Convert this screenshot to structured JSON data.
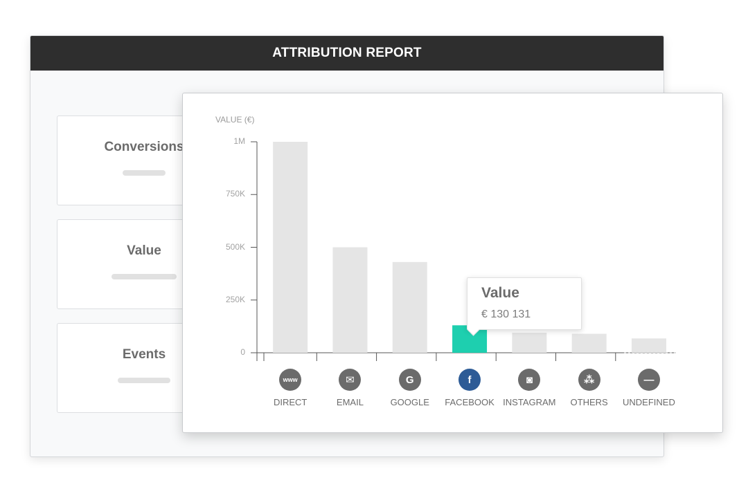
{
  "report": {
    "title": "ATTRIBUTION REPORT",
    "cards": [
      {
        "label": "Conversions"
      },
      {
        "label": "Value"
      },
      {
        "label": "Events"
      }
    ]
  },
  "tooltip": {
    "title": "Value",
    "value": "€ 130 131"
  },
  "colors": {
    "bar_default": "#e5e5e5",
    "bar_highlight": "#1ecfaf",
    "header_bg": "#2e2e2e",
    "icon_default": "#6b6b6b",
    "icon_active": "#2d5b96"
  },
  "icons": [
    {
      "name": "www-icon",
      "glyph": "www"
    },
    {
      "name": "email-icon",
      "glyph": "✉"
    },
    {
      "name": "google-icon",
      "glyph": "G"
    },
    {
      "name": "facebook-icon",
      "glyph": "f"
    },
    {
      "name": "instagram-icon",
      "glyph": "◙"
    },
    {
      "name": "others-icon",
      "glyph": "⁂"
    },
    {
      "name": "undefined-icon",
      "glyph": "—"
    }
  ],
  "chart_data": {
    "type": "bar",
    "ylabel": "VALUE (€)",
    "categories": [
      "DIRECT",
      "EMAIL",
      "GOOGLE",
      "FACEBOOK",
      "INSTAGRAM",
      "OTHERS",
      "UNDEFINED"
    ],
    "values": [
      1000000,
      500000,
      430000,
      130131,
      95000,
      90000,
      68000
    ],
    "highlight_index": 3,
    "ylim": [
      0,
      1000000
    ],
    "yticks": [
      {
        "value": 0,
        "label": "0"
      },
      {
        "value": 250000,
        "label": "250K"
      },
      {
        "value": 500000,
        "label": "500K"
      },
      {
        "value": 750000,
        "label": "750K"
      },
      {
        "value": 1000000,
        "label": "1M"
      }
    ],
    "grid": false,
    "legend": "none"
  }
}
